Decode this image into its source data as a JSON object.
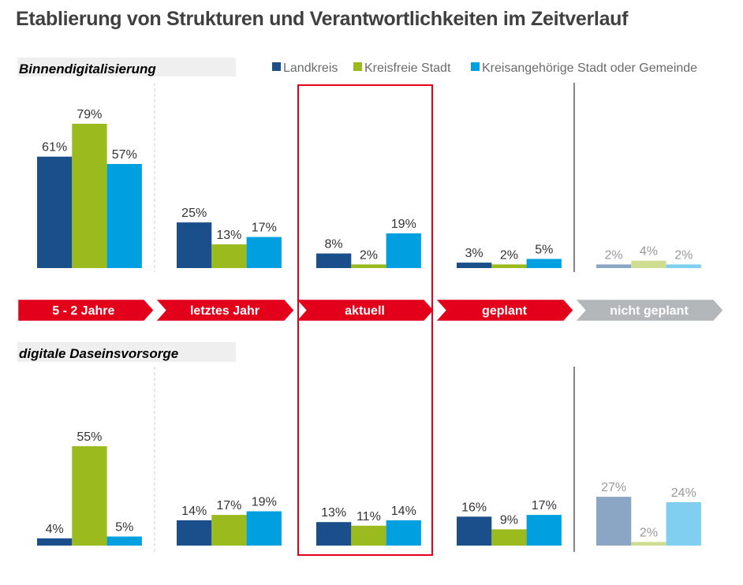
{
  "title": "Etablierung von Strukturen und Verantwortlichkeiten im Zeitverlauf",
  "legend": [
    {
      "name": "Landkreis",
      "color": "#1a4f8b"
    },
    {
      "name": "Kreisfreie Stadt",
      "color": "#9aba1e"
    },
    {
      "name": "Kreisangehörige Stadt oder Gemeinde",
      "color": "#00a0e0"
    }
  ],
  "faded_colors": [
    "#8aa6c4",
    "#cfdd90",
    "#80cff0"
  ],
  "timeline": {
    "labels": [
      "5 - 2 Jahre",
      "letztes Jahr",
      "aktuell",
      "geplant",
      "nicht geplant"
    ],
    "active_color": "#e2001a",
    "inactive_color": "#b3b7ba",
    "highlighted": "aktuell"
  },
  "chart_data": [
    {
      "type": "bar",
      "title": "Binnendigitalisierung",
      "categories": [
        "5 - 2 Jahre",
        "letztes Jahr",
        "aktuell",
        "geplant",
        "nicht geplant"
      ],
      "series": [
        {
          "name": "Landkreis",
          "values": [
            61,
            25,
            8,
            3,
            2
          ]
        },
        {
          "name": "Kreisfreie Stadt",
          "values": [
            79,
            13,
            2,
            2,
            4
          ]
        },
        {
          "name": "Kreisangehörige Stadt oder Gemeinde",
          "values": [
            57,
            17,
            19,
            5,
            2
          ]
        }
      ],
      "unit": "%",
      "ylim": [
        0,
        100
      ]
    },
    {
      "type": "bar",
      "title": "digitale Daseinsvorsorge",
      "categories": [
        "5 - 2 Jahre",
        "letztes Jahr",
        "aktuell",
        "geplant",
        "nicht geplant"
      ],
      "series": [
        {
          "name": "Landkreis",
          "values": [
            4,
            14,
            13,
            16,
            27
          ]
        },
        {
          "name": "Kreisfreie Stadt",
          "values": [
            55,
            17,
            11,
            9,
            2
          ]
        },
        {
          "name": "Kreisangehörige Stadt oder Gemeinde",
          "values": [
            5,
            19,
            14,
            17,
            24
          ]
        }
      ],
      "unit": "%",
      "ylim": [
        0,
        100
      ]
    }
  ]
}
